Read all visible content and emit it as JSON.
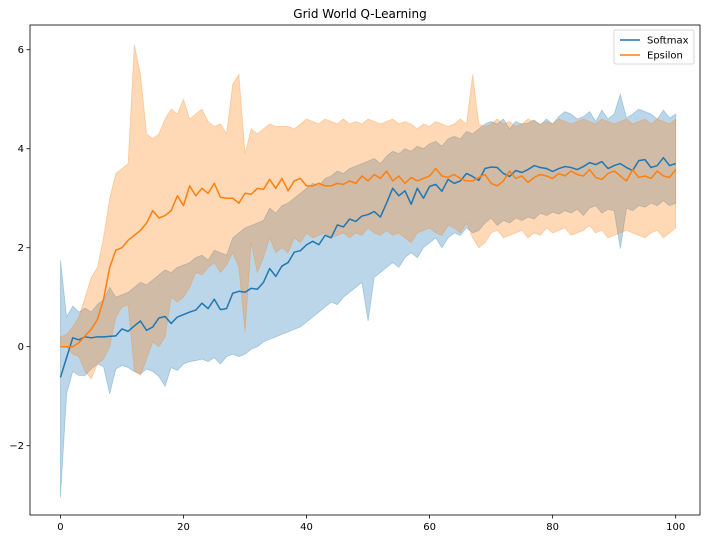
{
  "chart_data": {
    "type": "line",
    "title": "Grid World Q-Learning",
    "xlabel": "",
    "ylabel": "",
    "xlim": [
      -4.95,
      103.95
    ],
    "ylim": [
      -3.4,
      6.5
    ],
    "xticks": [
      0,
      20,
      40,
      60,
      80,
      100
    ],
    "yticks": [
      -2,
      0,
      2,
      4,
      6
    ],
    "grid": false,
    "legend_position": "upper right",
    "series": [
      {
        "name": "Softmax",
        "color": "#1f77b4",
        "band_color": "#1f77b4",
        "band_opacity": 0.3,
        "x": [
          0,
          1,
          2,
          3,
          4,
          5,
          6,
          7,
          8,
          9,
          10,
          11,
          12,
          13,
          14,
          15,
          16,
          17,
          18,
          19,
          20,
          21,
          22,
          23,
          24,
          25,
          26,
          27,
          28,
          29,
          30,
          31,
          32,
          33,
          34,
          35,
          36,
          37,
          38,
          39,
          40,
          41,
          42,
          43,
          44,
          45,
          46,
          47,
          48,
          49,
          50,
          51,
          52,
          53,
          54,
          55,
          56,
          57,
          58,
          59,
          60,
          61,
          62,
          63,
          64,
          65,
          66,
          67,
          68,
          69,
          70,
          71,
          72,
          73,
          74,
          75,
          76,
          77,
          78,
          79,
          80,
          81,
          82,
          83,
          84,
          85,
          86,
          87,
          88,
          89,
          90,
          91,
          92,
          93,
          94,
          95,
          96,
          97,
          98,
          99,
          100
        ],
        "mean": [
          -0.62,
          -0.22,
          0.18,
          0.14,
          0.2,
          0.18,
          0.2,
          0.2,
          0.21,
          0.22,
          0.36,
          0.31,
          0.42,
          0.52,
          0.33,
          0.4,
          0.58,
          0.61,
          0.47,
          0.6,
          0.65,
          0.7,
          0.74,
          0.88,
          0.77,
          0.96,
          0.75,
          0.77,
          1.08,
          1.12,
          1.1,
          1.18,
          1.16,
          1.3,
          1.58,
          1.42,
          1.63,
          1.7,
          1.91,
          1.94,
          2.06,
          2.13,
          2.06,
          2.25,
          2.2,
          2.46,
          2.42,
          2.58,
          2.53,
          2.64,
          2.67,
          2.73,
          2.62,
          2.9,
          3.2,
          3.05,
          3.15,
          2.88,
          3.2,
          3.0,
          3.24,
          3.28,
          3.14,
          3.38,
          3.3,
          3.35,
          3.5,
          3.44,
          3.36,
          3.6,
          3.63,
          3.62,
          3.5,
          3.44,
          3.56,
          3.52,
          3.58,
          3.66,
          3.62,
          3.6,
          3.54,
          3.6,
          3.64,
          3.62,
          3.58,
          3.64,
          3.72,
          3.68,
          3.74,
          3.6,
          3.66,
          3.7,
          3.62,
          3.56,
          3.76,
          3.78,
          3.62,
          3.66,
          3.82,
          3.66,
          3.7
        ],
        "lower": [
          -3.05,
          -0.95,
          -0.5,
          -0.58,
          -0.58,
          -0.45,
          -0.35,
          -0.4,
          -0.95,
          -0.45,
          -0.38,
          -0.42,
          -0.5,
          -0.55,
          -0.45,
          -0.5,
          -0.6,
          -0.8,
          -0.42,
          -0.48,
          -0.35,
          -0.3,
          -0.28,
          -0.25,
          -0.3,
          -0.22,
          -0.35,
          -0.2,
          -0.15,
          -0.2,
          -0.15,
          -0.05,
          0.0,
          0.1,
          0.15,
          0.2,
          0.25,
          0.3,
          0.35,
          0.4,
          0.5,
          0.6,
          0.7,
          0.8,
          0.9,
          0.85,
          1.0,
          1.1,
          1.2,
          1.3,
          0.52,
          1.4,
          1.5,
          1.6,
          1.7,
          1.6,
          1.8,
          1.9,
          1.8,
          2.0,
          2.1,
          2.2,
          2.0,
          2.2,
          2.3,
          2.25,
          2.4,
          2.3,
          2.35,
          2.5,
          2.6,
          2.45,
          2.55,
          2.5,
          2.6,
          2.55,
          2.62,
          2.58,
          2.7,
          2.65,
          2.72,
          2.68,
          2.75,
          2.7,
          2.78,
          2.65,
          2.8,
          2.85,
          2.7,
          2.78,
          2.75,
          1.98,
          2.8,
          2.75,
          2.85,
          2.82,
          2.9,
          2.85,
          2.95,
          2.85,
          2.9
        ],
        "upper": [
          1.75,
          0.6,
          0.82,
          0.7,
          0.78,
          0.7,
          0.85,
          0.95,
          1.2,
          1.0,
          1.05,
          1.1,
          1.2,
          1.3,
          1.25,
          1.35,
          1.45,
          1.55,
          1.5,
          1.6,
          1.65,
          1.7,
          1.8,
          1.85,
          1.75,
          1.95,
          1.9,
          1.85,
          2.2,
          2.3,
          2.4,
          2.45,
          2.5,
          2.55,
          2.8,
          2.7,
          2.85,
          2.9,
          3.0,
          3.1,
          3.2,
          3.3,
          3.25,
          3.4,
          3.45,
          3.55,
          3.5,
          3.6,
          3.65,
          3.7,
          3.75,
          3.8,
          3.7,
          3.85,
          3.95,
          3.9,
          4.0,
          3.95,
          4.05,
          4.0,
          4.1,
          4.15,
          4.05,
          4.2,
          4.25,
          4.2,
          4.35,
          4.3,
          4.4,
          4.5,
          4.55,
          4.5,
          4.6,
          4.4,
          4.55,
          4.5,
          4.52,
          4.58,
          4.48,
          4.6,
          4.5,
          4.65,
          4.75,
          4.7,
          4.6,
          4.65,
          4.75,
          4.55,
          4.78,
          4.6,
          4.7,
          5.1,
          4.62,
          4.7,
          4.8,
          4.75,
          4.7,
          4.6,
          4.78,
          4.62,
          4.7
        ]
      },
      {
        "name": "Epsilon",
        "color": "#ff7f0e",
        "band_color": "#ff7f0e",
        "band_opacity": 0.3,
        "x": [
          0,
          1,
          2,
          3,
          4,
          5,
          6,
          7,
          8,
          9,
          10,
          11,
          12,
          13,
          14,
          15,
          16,
          17,
          18,
          19,
          20,
          21,
          22,
          23,
          24,
          25,
          26,
          27,
          28,
          29,
          30,
          31,
          32,
          33,
          34,
          35,
          36,
          37,
          38,
          39,
          40,
          41,
          42,
          43,
          44,
          45,
          46,
          47,
          48,
          49,
          50,
          51,
          52,
          53,
          54,
          55,
          56,
          57,
          58,
          59,
          60,
          61,
          62,
          63,
          64,
          65,
          66,
          67,
          68,
          69,
          70,
          71,
          72,
          73,
          74,
          75,
          76,
          77,
          78,
          79,
          80,
          81,
          82,
          83,
          84,
          85,
          86,
          87,
          88,
          89,
          90,
          91,
          92,
          93,
          94,
          95,
          96,
          97,
          98,
          99,
          100
        ],
        "mean": [
          0.0,
          0.0,
          0.0,
          0.08,
          0.22,
          0.35,
          0.55,
          0.95,
          1.6,
          1.95,
          2.0,
          2.15,
          2.25,
          2.35,
          2.5,
          2.75,
          2.6,
          2.65,
          2.75,
          3.05,
          2.85,
          3.25,
          3.05,
          3.2,
          3.1,
          3.3,
          3.02,
          3.0,
          3.0,
          2.9,
          3.1,
          3.08,
          3.2,
          3.18,
          3.38,
          3.2,
          3.4,
          3.15,
          3.35,
          3.4,
          3.25,
          3.25,
          3.3,
          3.25,
          3.25,
          3.3,
          3.28,
          3.35,
          3.3,
          3.45,
          3.35,
          3.48,
          3.4,
          3.55,
          3.35,
          3.45,
          3.3,
          3.42,
          3.35,
          3.4,
          3.45,
          3.6,
          3.45,
          3.42,
          3.48,
          3.4,
          3.35,
          3.35,
          3.42,
          3.48,
          3.3,
          3.25,
          3.35,
          3.55,
          3.4,
          3.45,
          3.32,
          3.42,
          3.48,
          3.45,
          3.4,
          3.5,
          3.45,
          3.55,
          3.48,
          3.45,
          3.58,
          3.42,
          3.38,
          3.5,
          3.55,
          3.45,
          3.35,
          3.58,
          3.42,
          3.45,
          3.4,
          3.55,
          3.45,
          3.42,
          3.58
        ],
        "lower": [
          0.0,
          0.0,
          -0.15,
          -0.2,
          -0.5,
          -0.65,
          -0.35,
          -0.25,
          0.0,
          0.6,
          0.8,
          0.85,
          -0.48,
          -0.58,
          -0.25,
          0.1,
          0.0,
          0.2,
          1.0,
          0.9,
          1.0,
          1.2,
          1.5,
          1.45,
          1.6,
          1.7,
          1.5,
          1.65,
          1.9,
          1.6,
          0.3,
          2.1,
          1.5,
          1.8,
          2.2,
          1.9,
          2.0,
          1.9,
          2.2,
          2.1,
          2.3,
          2.2,
          2.25,
          2.3,
          2.2,
          2.25,
          2.3,
          2.2,
          2.3,
          2.25,
          2.4,
          2.3,
          2.25,
          2.35,
          2.25,
          2.3,
          2.2,
          2.1,
          2.3,
          2.35,
          2.4,
          2.3,
          2.25,
          2.45,
          2.4,
          2.3,
          2.5,
          2.2,
          2.0,
          2.1,
          2.3,
          2.35,
          2.2,
          2.25,
          2.3,
          2.35,
          2.2,
          2.3,
          2.25,
          2.4,
          2.3,
          2.35,
          2.4,
          2.25,
          2.3,
          2.35,
          2.45,
          2.3,
          2.35,
          2.2,
          2.25,
          2.3,
          2.35,
          2.3,
          2.25,
          2.2,
          2.3,
          2.35,
          2.2,
          2.3,
          2.4
        ],
        "upper": [
          0.2,
          0.25,
          0.4,
          0.6,
          1.0,
          1.4,
          1.6,
          2.2,
          3.0,
          3.5,
          3.6,
          3.7,
          6.1,
          5.5,
          4.3,
          4.2,
          4.3,
          4.6,
          4.8,
          4.7,
          5.0,
          4.6,
          4.7,
          4.8,
          4.55,
          4.45,
          4.5,
          4.3,
          5.3,
          5.5,
          3.9,
          4.4,
          4.3,
          4.4,
          4.5,
          4.45,
          4.45,
          4.45,
          4.4,
          4.5,
          4.6,
          4.55,
          4.5,
          4.6,
          4.55,
          4.5,
          4.6,
          4.5,
          4.55,
          4.5,
          4.6,
          4.55,
          4.5,
          4.55,
          4.6,
          4.5,
          4.55,
          4.5,
          4.4,
          4.5,
          4.45,
          4.55,
          4.5,
          4.45,
          4.5,
          4.6,
          4.5,
          5.5,
          4.5,
          4.45,
          4.5,
          4.6,
          4.5,
          4.55,
          4.45,
          4.5,
          4.6,
          4.55,
          4.5,
          4.55,
          4.5,
          4.6,
          4.55,
          4.5,
          4.55,
          4.6,
          4.55,
          4.5,
          4.6,
          4.55,
          4.5,
          4.55,
          4.6,
          4.5,
          4.55,
          4.6,
          4.5,
          4.6,
          4.55,
          4.5,
          4.6
        ]
      }
    ]
  }
}
